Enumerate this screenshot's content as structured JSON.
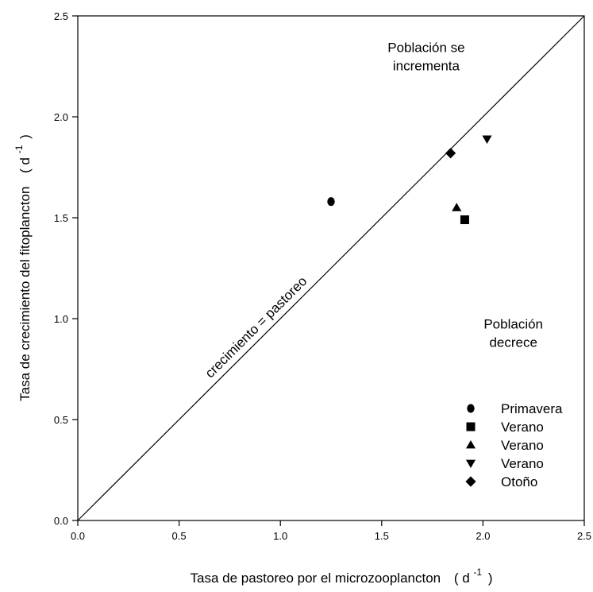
{
  "chart_data": {
    "type": "scatter",
    "xlabel": "Tasa de pastoreo por el microzooplancton",
    "xlabel_unit": "( d",
    "xlabel_exp": "-1",
    "xlabel_close": ")",
    "ylabel": "Tasa de crecimiento del fitoplancton",
    "ylabel_unit": "( d",
    "ylabel_exp": "-1",
    "ylabel_close": ")",
    "xlim": [
      0,
      2.5
    ],
    "ylim": [
      0,
      2.5
    ],
    "x_ticks": [
      "0.0",
      "0.5",
      "1.0",
      "1.5",
      "2.0",
      "2.5"
    ],
    "y_ticks": [
      "0.0",
      "0.5",
      "1.0",
      "1.5",
      "2.0",
      "2.5"
    ],
    "grid": false,
    "reference_line": {
      "label": "crecimiento = pastoreo",
      "from": [
        0,
        0
      ],
      "to": [
        2.5,
        2.5
      ]
    },
    "annotations": [
      {
        "lines": [
          "Población se",
          "incrementa"
        ],
        "x": 1.72,
        "y": 2.32
      },
      {
        "lines": [
          "Población",
          "decrece"
        ],
        "x": 2.15,
        "y": 0.95
      }
    ],
    "legend_position": "bottom-right",
    "series": [
      {
        "name": "Primavera",
        "marker": "circle",
        "x": [
          1.25
        ],
        "y": [
          1.58
        ]
      },
      {
        "name": "Verano",
        "marker": "square",
        "x": [
          1.91
        ],
        "y": [
          1.49
        ]
      },
      {
        "name": "Verano",
        "marker": "triangle-up",
        "x": [
          1.87
        ],
        "y": [
          1.55
        ]
      },
      {
        "name": "Verano",
        "marker": "triangle-down",
        "x": [
          2.02
        ],
        "y": [
          1.89
        ]
      },
      {
        "name": "Otoño",
        "marker": "diamond",
        "x": [
          1.84
        ],
        "y": [
          1.82
        ]
      }
    ]
  }
}
